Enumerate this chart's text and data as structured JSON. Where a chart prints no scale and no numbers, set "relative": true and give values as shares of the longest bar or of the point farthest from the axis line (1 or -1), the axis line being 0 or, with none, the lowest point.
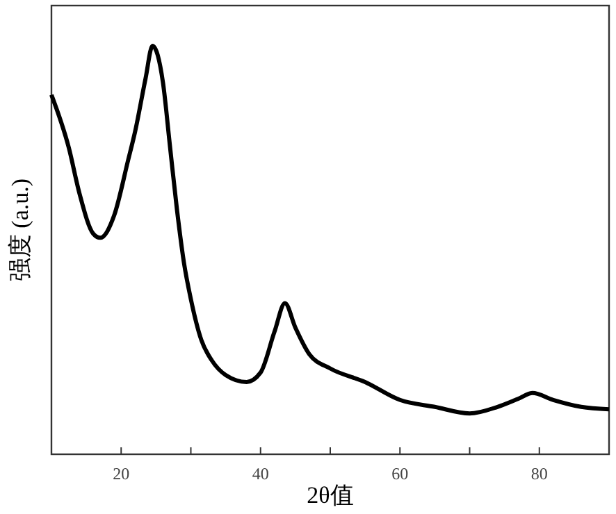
{
  "chart_data": {
    "type": "line",
    "xlabel": "2θ值",
    "ylabel": "强度 (a.u.)",
    "relative": true,
    "xlim": [
      10,
      90
    ],
    "xticks": [
      {
        "value": 10,
        "label": null
      },
      20,
      {
        "value": 30,
        "label": null
      },
      40,
      {
        "value": 50,
        "label": null
      },
      60,
      {
        "value": 70,
        "label": null
      },
      80,
      {
        "value": 90,
        "label": null
      }
    ],
    "x": [
      10,
      12.5,
      14,
      16,
      17,
      19,
      21,
      22,
      23.5,
      24.5,
      26,
      27,
      28,
      29,
      30,
      31.5,
      33,
      35,
      38,
      40,
      42,
      43.5,
      45,
      47,
      50,
      55,
      60,
      65,
      70,
      74,
      77,
      79,
      82,
      86,
      90
    ],
    "series": [
      {
        "color": "#000000",
        "values": [
          0.88,
          0.75,
          0.64,
          0.54,
          0.53,
          0.585,
          0.72,
          0.79,
          0.92,
          1.0,
          0.91,
          0.755,
          0.6,
          0.47,
          0.38,
          0.28,
          0.23,
          0.194,
          0.177,
          0.2,
          0.3,
          0.37,
          0.31,
          0.245,
          0.21,
          0.177,
          0.133,
          0.116,
          0.1,
          0.116,
          0.136,
          0.15,
          0.133,
          0.116,
          0.11
        ]
      }
    ],
    "grid": false,
    "marker": "none",
    "line_style": "solid",
    "tick_labels": "x"
  }
}
